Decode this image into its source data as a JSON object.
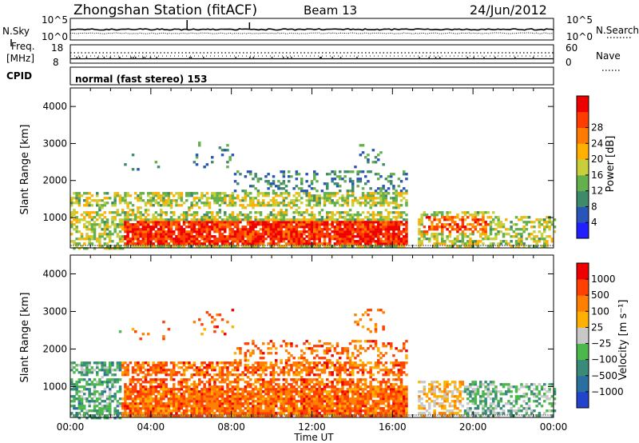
{
  "header": {
    "station": "Zhongshan Station (fitACF)",
    "beam": "Beam 13",
    "date": "24/Jun/2012"
  },
  "top_panels": {
    "nsky_label": "N.Sky",
    "nsearch_label": "N.Search",
    "noise_ticks": [
      "10^5",
      "10^0"
    ],
    "freq_label_1": "Freq.",
    "freq_label_2": "[MHz]",
    "freq_ticks_left": [
      "18",
      "8"
    ],
    "nave_label": "Nave",
    "nave_ticks_right": [
      "60",
      "0"
    ],
    "cpid_label": "CPID",
    "cpid_text": "normal (fast stereo) 153"
  },
  "chart_data": [
    {
      "type": "heatmap",
      "name": "power_panel",
      "ylabel": "Slant Range [km]",
      "xlabel": "",
      "x_ticks": [
        "00:00",
        "04:00",
        "08:00",
        "12:00",
        "16:00",
        "20:00",
        "00:00"
      ],
      "xlim_hours": [
        0,
        24
      ],
      "y_ticks": [
        1000,
        2000,
        3000,
        4000
      ],
      "ylim": [
        180,
        4500
      ],
      "colorbar": {
        "label": "Power [dB]",
        "ticks": [
          "4",
          "8",
          "12",
          "16",
          "20",
          "24",
          "28"
        ],
        "colors": [
          "#1f1fff",
          "#2a55b8",
          "#3e8a6a",
          "#64b04c",
          "#c8cf3a",
          "#ffb000",
          "#ff7a00",
          "#ff3c00",
          "#ee0000"
        ]
      }
    },
    {
      "type": "heatmap",
      "name": "velocity_panel",
      "ylabel": "Slant Range [km]",
      "xlabel": "Time UT",
      "x_ticks": [
        "00:00",
        "04:00",
        "08:00",
        "12:00",
        "16:00",
        "20:00",
        "00:00"
      ],
      "xlim_hours": [
        0,
        24
      ],
      "y_ticks": [
        1000,
        2000,
        3000,
        4000
      ],
      "ylim": [
        180,
        4500
      ],
      "colorbar": {
        "label": "Velocity [m s⁻¹]",
        "ticks": [
          "1000",
          "500",
          "100",
          "25",
          "−25",
          "−100",
          "−500",
          "−1000"
        ],
        "colors": [
          "#2244cc",
          "#2b6fa0",
          "#3a8a7a",
          "#4cb84c",
          "#c8c8c8",
          "#ffb000",
          "#ff8000",
          "#ff4000",
          "#ee0000"
        ]
      }
    }
  ],
  "colors": {
    "axis": "#000000",
    "grey_band": "#c8c8c8"
  }
}
